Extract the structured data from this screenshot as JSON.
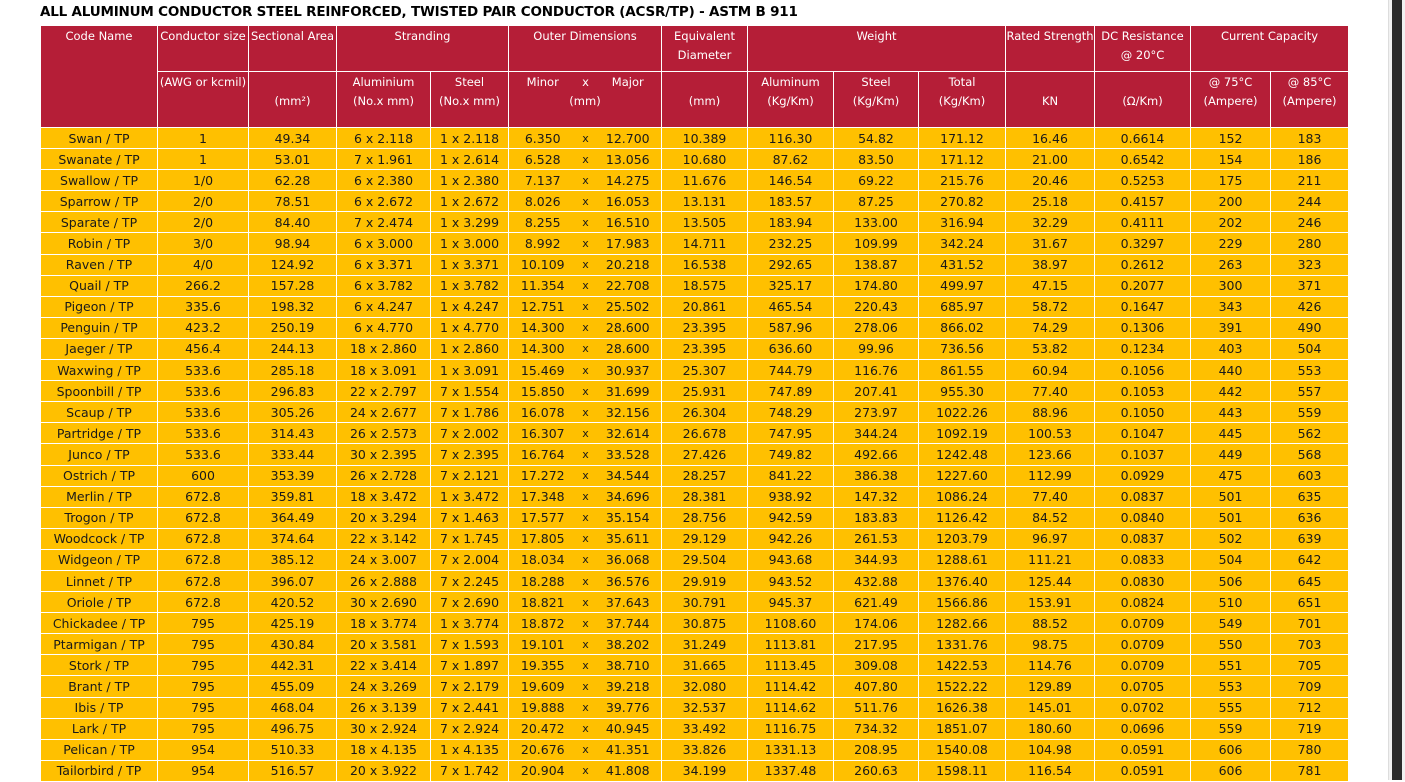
{
  "title": "ALL ALUMINUM CONDUCTOR STEEL REINFORCED, TWISTED PAIR CONDUCTOR (ACSR/TP) - ASTM B 911",
  "separator": "x",
  "header": {
    "row1": [
      "Code Name",
      "Conductor size",
      "Sectional Area",
      "Stranding",
      "Outer Dimensions",
      "Equivalent Diameter",
      "Weight",
      "Rated Strength",
      "DC Resistance @ 20°C",
      "Current Capacity"
    ],
    "row2": [
      "(AWG or kcmil)",
      "Aluminium",
      "Steel",
      "Minor",
      "Major",
      "Aluminum",
      "Steel",
      "Total",
      "@ 75°C",
      "@ 85°C"
    ],
    "row3": [
      "(mm²)",
      "(No.x mm)",
      "(No.x mm)",
      "(mm)",
      "(mm)",
      "(Kg/Km)",
      "(Kg/Km)",
      "(Kg/Km)",
      "KN",
      "(Ω/Km)",
      "(Ampere)",
      "(Ampere)"
    ]
  },
  "rows": [
    [
      "Swan / TP",
      "1",
      "49.34",
      "6 x 2.118",
      "1 x 2.118",
      "6.350",
      "12.700",
      "10.389",
      "116.30",
      "54.82",
      "171.12",
      "16.46",
      "0.6614",
      "152",
      "183"
    ],
    [
      "Swanate / TP",
      "1",
      "53.01",
      "7 x 1.961",
      "1 x 2.614",
      "6.528",
      "13.056",
      "10.680",
      "87.62",
      "83.50",
      "171.12",
      "21.00",
      "0.6542",
      "154",
      "186"
    ],
    [
      "Swallow / TP",
      "1/0",
      "62.28",
      "6 x 2.380",
      "1 x 2.380",
      "7.137",
      "14.275",
      "11.676",
      "146.54",
      "69.22",
      "215.76",
      "20.46",
      "0.5253",
      "175",
      "211"
    ],
    [
      "Sparrow / TP",
      "2/0",
      "78.51",
      "6 x 2.672",
      "1 x 2.672",
      "8.026",
      "16.053",
      "13.131",
      "183.57",
      "87.25",
      "270.82",
      "25.18",
      "0.4157",
      "200",
      "244"
    ],
    [
      "Sparate / TP",
      "2/0",
      "84.40",
      "7 x 2.474",
      "1 x 3.299",
      "8.255",
      "16.510",
      "13.505",
      "183.94",
      "133.00",
      "316.94",
      "32.29",
      "0.4111",
      "202",
      "246"
    ],
    [
      "Robin / TP",
      "3/0",
      "98.94",
      "6 x 3.000",
      "1 x 3.000",
      "8.992",
      "17.983",
      "14.711",
      "232.25",
      "109.99",
      "342.24",
      "31.67",
      "0.3297",
      "229",
      "280"
    ],
    [
      "Raven / TP",
      "4/0",
      "124.92",
      "6 x 3.371",
      "1 x 3.371",
      "10.109",
      "20.218",
      "16.538",
      "292.65",
      "138.87",
      "431.52",
      "38.97",
      "0.2612",
      "263",
      "323"
    ],
    [
      "Quail / TP",
      "266.2",
      "157.28",
      "6 x 3.782",
      "1 x 3.782",
      "11.354",
      "22.708",
      "18.575",
      "325.17",
      "174.80",
      "499.97",
      "47.15",
      "0.2077",
      "300",
      "371"
    ],
    [
      "Pigeon / TP",
      "335.6",
      "198.32",
      "6 x 4.247",
      "1 x 4.247",
      "12.751",
      "25.502",
      "20.861",
      "465.54",
      "220.43",
      "685.97",
      "58.72",
      "0.1647",
      "343",
      "426"
    ],
    [
      "Penguin / TP",
      "423.2",
      "250.19",
      "6 x 4.770",
      "1 x 4.770",
      "14.300",
      "28.600",
      "23.395",
      "587.96",
      "278.06",
      "866.02",
      "74.29",
      "0.1306",
      "391",
      "490"
    ],
    [
      "Jaeger / TP",
      "456.4",
      "244.13",
      "18 x 2.860",
      "1 x 2.860",
      "14.300",
      "28.600",
      "23.395",
      "636.60",
      "99.96",
      "736.56",
      "53.82",
      "0.1234",
      "403",
      "504"
    ],
    [
      "Waxwing / TP",
      "533.6",
      "285.18",
      "18 x 3.091",
      "1 x 3.091",
      "15.469",
      "30.937",
      "25.307",
      "744.79",
      "116.76",
      "861.55",
      "60.94",
      "0.1056",
      "440",
      "553"
    ],
    [
      "Spoonbill / TP",
      "533.6",
      "296.83",
      "22 x 2.797",
      "7 x 1.554",
      "15.850",
      "31.699",
      "25.931",
      "747.89",
      "207.41",
      "955.30",
      "77.40",
      "0.1053",
      "442",
      "557"
    ],
    [
      "Scaup / TP",
      "533.6",
      "305.26",
      "24 x 2.677",
      "7 x 1.786",
      "16.078",
      "32.156",
      "26.304",
      "748.29",
      "273.97",
      "1022.26",
      "88.96",
      "0.1050",
      "443",
      "559"
    ],
    [
      "Partridge / TP",
      "533.6",
      "314.43",
      "26 x 2.573",
      "7 x 2.002",
      "16.307",
      "32.614",
      "26.678",
      "747.95",
      "344.24",
      "1092.19",
      "100.53",
      "0.1047",
      "445",
      "562"
    ],
    [
      "Junco / TP",
      "533.6",
      "333.44",
      "30 x 2.395",
      "7 x 2.395",
      "16.764",
      "33.528",
      "27.426",
      "749.82",
      "492.66",
      "1242.48",
      "123.66",
      "0.1037",
      "449",
      "568"
    ],
    [
      "Ostrich / TP",
      "600",
      "353.39",
      "26 x 2.728",
      "7 x 2.121",
      "17.272",
      "34.544",
      "28.257",
      "841.22",
      "386.38",
      "1227.60",
      "112.99",
      "0.0929",
      "475",
      "603"
    ],
    [
      "Merlin / TP",
      "672.8",
      "359.81",
      "18 x 3.472",
      "1 x 3.472",
      "17.348",
      "34.696",
      "28.381",
      "938.92",
      "147.32",
      "1086.24",
      "77.40",
      "0.0837",
      "501",
      "635"
    ],
    [
      "Trogon / TP",
      "672.8",
      "364.49",
      "20 x 3.294",
      "7 x 1.463",
      "17.577",
      "35.154",
      "28.756",
      "942.59",
      "183.83",
      "1126.42",
      "84.52",
      "0.0840",
      "501",
      "636"
    ],
    [
      "Woodcock / TP",
      "672.8",
      "374.64",
      "22 x 3.142",
      "7 x 1.745",
      "17.805",
      "35.611",
      "29.129",
      "942.26",
      "261.53",
      "1203.79",
      "96.97",
      "0.0837",
      "502",
      "639"
    ],
    [
      "Widgeon / TP",
      "672.8",
      "385.12",
      "24 x 3.007",
      "7 x 2.004",
      "18.034",
      "36.068",
      "29.504",
      "943.68",
      "344.93",
      "1288.61",
      "111.21",
      "0.0833",
      "504",
      "642"
    ],
    [
      "Linnet / TP",
      "672.8",
      "396.07",
      "26 x 2.888",
      "7 x 2.245",
      "18.288",
      "36.576",
      "29.919",
      "943.52",
      "432.88",
      "1376.40",
      "125.44",
      "0.0830",
      "506",
      "645"
    ],
    [
      "Oriole / TP",
      "672.8",
      "420.52",
      "30 x 2.690",
      "7 x 2.690",
      "18.821",
      "37.643",
      "30.791",
      "945.37",
      "621.49",
      "1566.86",
      "153.91",
      "0.0824",
      "510",
      "651"
    ],
    [
      "Chickadee / TP",
      "795",
      "425.19",
      "18 x 3.774",
      "1 x 3.774",
      "18.872",
      "37.744",
      "30.875",
      "1108.60",
      "174.06",
      "1282.66",
      "88.52",
      "0.0709",
      "549",
      "701"
    ],
    [
      "Ptarmigan / TP",
      "795",
      "430.84",
      "20 x 3.581",
      "7 x 1.593",
      "19.101",
      "38.202",
      "31.249",
      "1113.81",
      "217.95",
      "1331.76",
      "98.75",
      "0.0709",
      "550",
      "703"
    ],
    [
      "Stork / TP",
      "795",
      "442.31",
      "22 x 3.414",
      "7 x 1.897",
      "19.355",
      "38.710",
      "31.665",
      "1113.45",
      "309.08",
      "1422.53",
      "114.76",
      "0.0709",
      "551",
      "705"
    ],
    [
      "Brant / TP",
      "795",
      "455.09",
      "24 x 3.269",
      "7 x 2.179",
      "19.609",
      "39.218",
      "32.080",
      "1114.42",
      "407.80",
      "1522.22",
      "129.89",
      "0.0705",
      "553",
      "709"
    ],
    [
      "Ibis / TP",
      "795",
      "468.04",
      "26 x 3.139",
      "7 x 2.441",
      "19.888",
      "39.776",
      "32.537",
      "1114.62",
      "511.76",
      "1626.38",
      "145.01",
      "0.0702",
      "555",
      "712"
    ],
    [
      "Lark / TP",
      "795",
      "496.75",
      "30 x 2.924",
      "7 x 2.924",
      "20.472",
      "40.945",
      "33.492",
      "1116.75",
      "734.32",
      "1851.07",
      "180.60",
      "0.0696",
      "559",
      "719"
    ],
    [
      "Pelican / TP",
      "954",
      "510.33",
      "18 x 4.135",
      "1 x 4.135",
      "20.676",
      "41.351",
      "33.826",
      "1331.13",
      "208.95",
      "1540.08",
      "104.98",
      "0.0591",
      "606",
      "780"
    ],
    [
      "Tailorbird / TP",
      "954",
      "516.57",
      "20 x 3.922",
      "7 x 1.742",
      "20.904",
      "41.808",
      "34.199",
      "1337.48",
      "260.63",
      "1598.11",
      "116.54",
      "0.0591",
      "606",
      "781"
    ]
  ]
}
